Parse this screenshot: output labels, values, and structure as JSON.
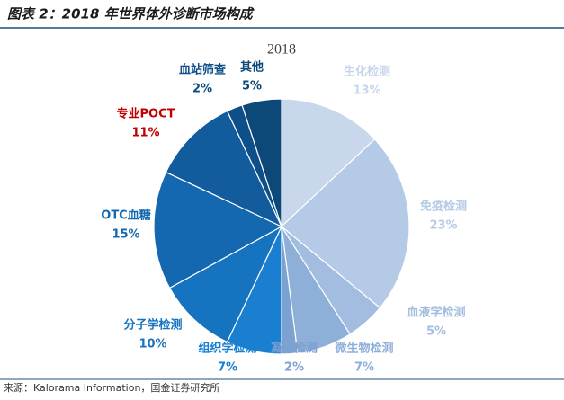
{
  "header": {
    "title": "图表 2：2018 年世界体外诊断市场构成"
  },
  "chart_data": {
    "type": "pie",
    "title": "2018",
    "categories": [
      "生化检测",
      "免疫检测",
      "血液学检测",
      "微生物检测",
      "凝血检测",
      "组织学检测",
      "分子学检测",
      "OTC血糖",
      "专业POCT",
      "血站筛查",
      "其他"
    ],
    "values": [
      13,
      23,
      5,
      7,
      2,
      7,
      10,
      15,
      11,
      2,
      5
    ],
    "value_labels": [
      "13%",
      "23%",
      "5%",
      "7%",
      "2%",
      "7%",
      "10%",
      "15%",
      "11%",
      "2%",
      "5%"
    ],
    "colors": [
      "#c8d7ec",
      "#b4cae6",
      "#a2bde0",
      "#8eafd8",
      "#7ba2d1",
      "#1a7fd0",
      "#1673c0",
      "#1468b0",
      "#125b9c",
      "#0f4f89",
      "#0c4878"
    ],
    "label_colors": [
      "#c8d7ec",
      "#b4cae6",
      "#a2bde0",
      "#8eafd8",
      "#7ba2d1",
      "#1a7fd0",
      "#1673c0",
      "#1468b0",
      "#c00000",
      "#0f4f89",
      "#0c4878"
    ]
  },
  "footer": {
    "source": "来源：Kalorama Information，国金证券研究所"
  }
}
